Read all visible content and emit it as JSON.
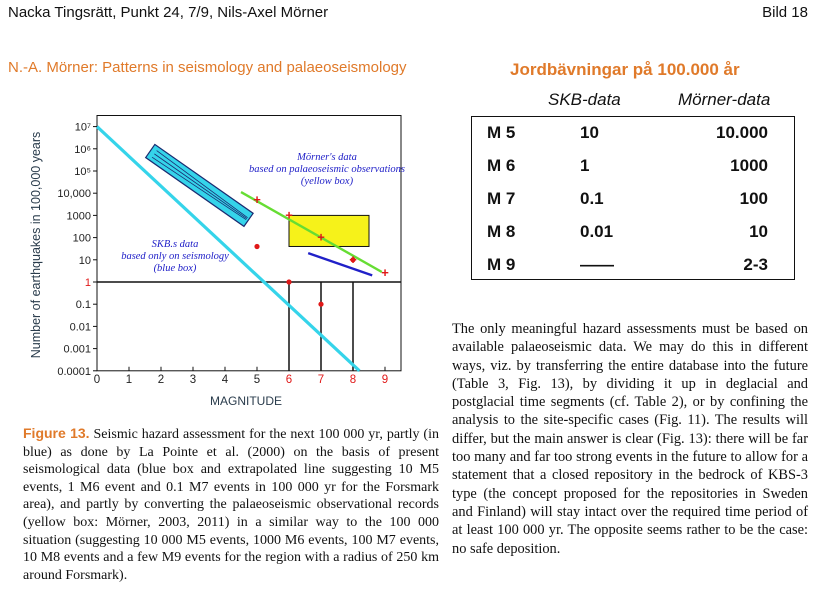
{
  "header": {
    "left": "Nacka Tingsrätt, Punkt 24, 7/9, Nils-Axel Mörner",
    "right": "Bild 18"
  },
  "subtitle": "N.-A. Mörner: Patterns in seismology and palaeoseismology",
  "table": {
    "title": "Jordbävningar på 100.000 år",
    "col_skb": "SKB-data",
    "col_morner": "Mörner-data",
    "rows": [
      {
        "mag": "M 5",
        "skb": "10",
        "morner": "10.000"
      },
      {
        "mag": "M 6",
        "skb": "1",
        "morner": "1000"
      },
      {
        "mag": "M 7",
        "skb": "0.1",
        "morner": "100"
      },
      {
        "mag": "M 8",
        "skb": "0.01",
        "morner": "10"
      },
      {
        "mag": "M 9",
        "skb": "——",
        "morner": "2-3"
      }
    ]
  },
  "body_text": "The only meaningful hazard assessments must be based on available palaeoseismic data. We may do this in different ways, viz. by transferring the entire database into the future (Table 3, Fig. 13), by dividing it up in deglacial and postglacial time segments (cf. Table 2), or by confining the analysis to the site-specific cases (Fig. 11). The results will differ, but the main answer is clear (Fig. 13): there will be far too many and far too strong events in the future to allow for a statement that a closed repository in the bedrock of KBS-3 type (the concept proposed for the repositories in Sweden and Finland) will stay intact over the required time period of at least 100 000 yr. The opposite seems rather to be the case: no safe deposition.",
  "caption": {
    "label": "Figure 13.",
    "text": " Seismic hazard assessment for the next 100 000 yr, partly (in blue) as done by La Pointe et al. (2000) on the basis of present seismological data (blue box and extrapolated line suggesting 10 M5 events, 1 M6 event and 0.1 M7 events in 100 000 yr for the Forsmark area), and partly by converting the palaeoseismic observational records (yellow box: Mörner, 2003, 2011) in a similar way to the 100 000 situation (suggesting 10 000 M5 events, 1000 M6 events, 100 M7 events, 10 M8 events and a few M9 events for the region with a radius of 250 km around Forsmark)."
  },
  "chart_data": {
    "type": "line",
    "xlabel": "MAGNITUDE",
    "ylabel": "Number of earthquakes in 100,000 years",
    "x_ticks": [
      "0",
      "1",
      "2",
      "3",
      "4",
      "5",
      "6",
      "7",
      "8",
      "9"
    ],
    "y_ticks": [
      "10⁷",
      "10⁶",
      "10⁵",
      "10,000",
      "1000",
      "100",
      "10",
      "1",
      "0.1",
      "0.01",
      "0.001",
      "0.0001"
    ],
    "xlim": [
      0,
      9.5
    ],
    "ylim_log10": [
      -4,
      7
    ],
    "y_scale": "log",
    "annotations": {
      "skb": [
        "SKB.s data",
        "based only on seismology",
        "(blue box)"
      ],
      "morner": [
        "Mörner's data",
        "based on palaeoseismic observations",
        "(yellow box)"
      ]
    },
    "series": [
      {
        "color": "#35d4ea",
        "x": [
          0,
          8.2
        ],
        "y_log10": [
          7,
          -4
        ]
      },
      {
        "color": "#2020c8",
        "x": [
          6.6,
          8.6
        ],
        "y_log10": [
          1.3,
          0.3
        ]
      },
      {
        "color": "#66dd33",
        "x": [
          4.5,
          8.9
        ],
        "y_log10": [
          4.05,
          0.45
        ]
      }
    ],
    "points_red_plus": [
      [
        5,
        3.7
      ],
      [
        6,
        3.0
      ],
      [
        7,
        2.0
      ],
      [
        8,
        1.0
      ],
      [
        9,
        0.4
      ]
    ],
    "points_red_dot": [
      [
        5,
        1.6
      ],
      [
        6,
        0.0
      ],
      [
        7,
        -1.0
      ],
      [
        8,
        1.0
      ]
    ],
    "drops": [
      6,
      7,
      8
    ],
    "yellow_box": {
      "x": [
        6,
        8.5
      ],
      "y_log10": [
        1.6,
        3.0
      ]
    },
    "colors": {
      "accent": "#e07a2a",
      "axis_label": "#2a3c4c"
    }
  }
}
